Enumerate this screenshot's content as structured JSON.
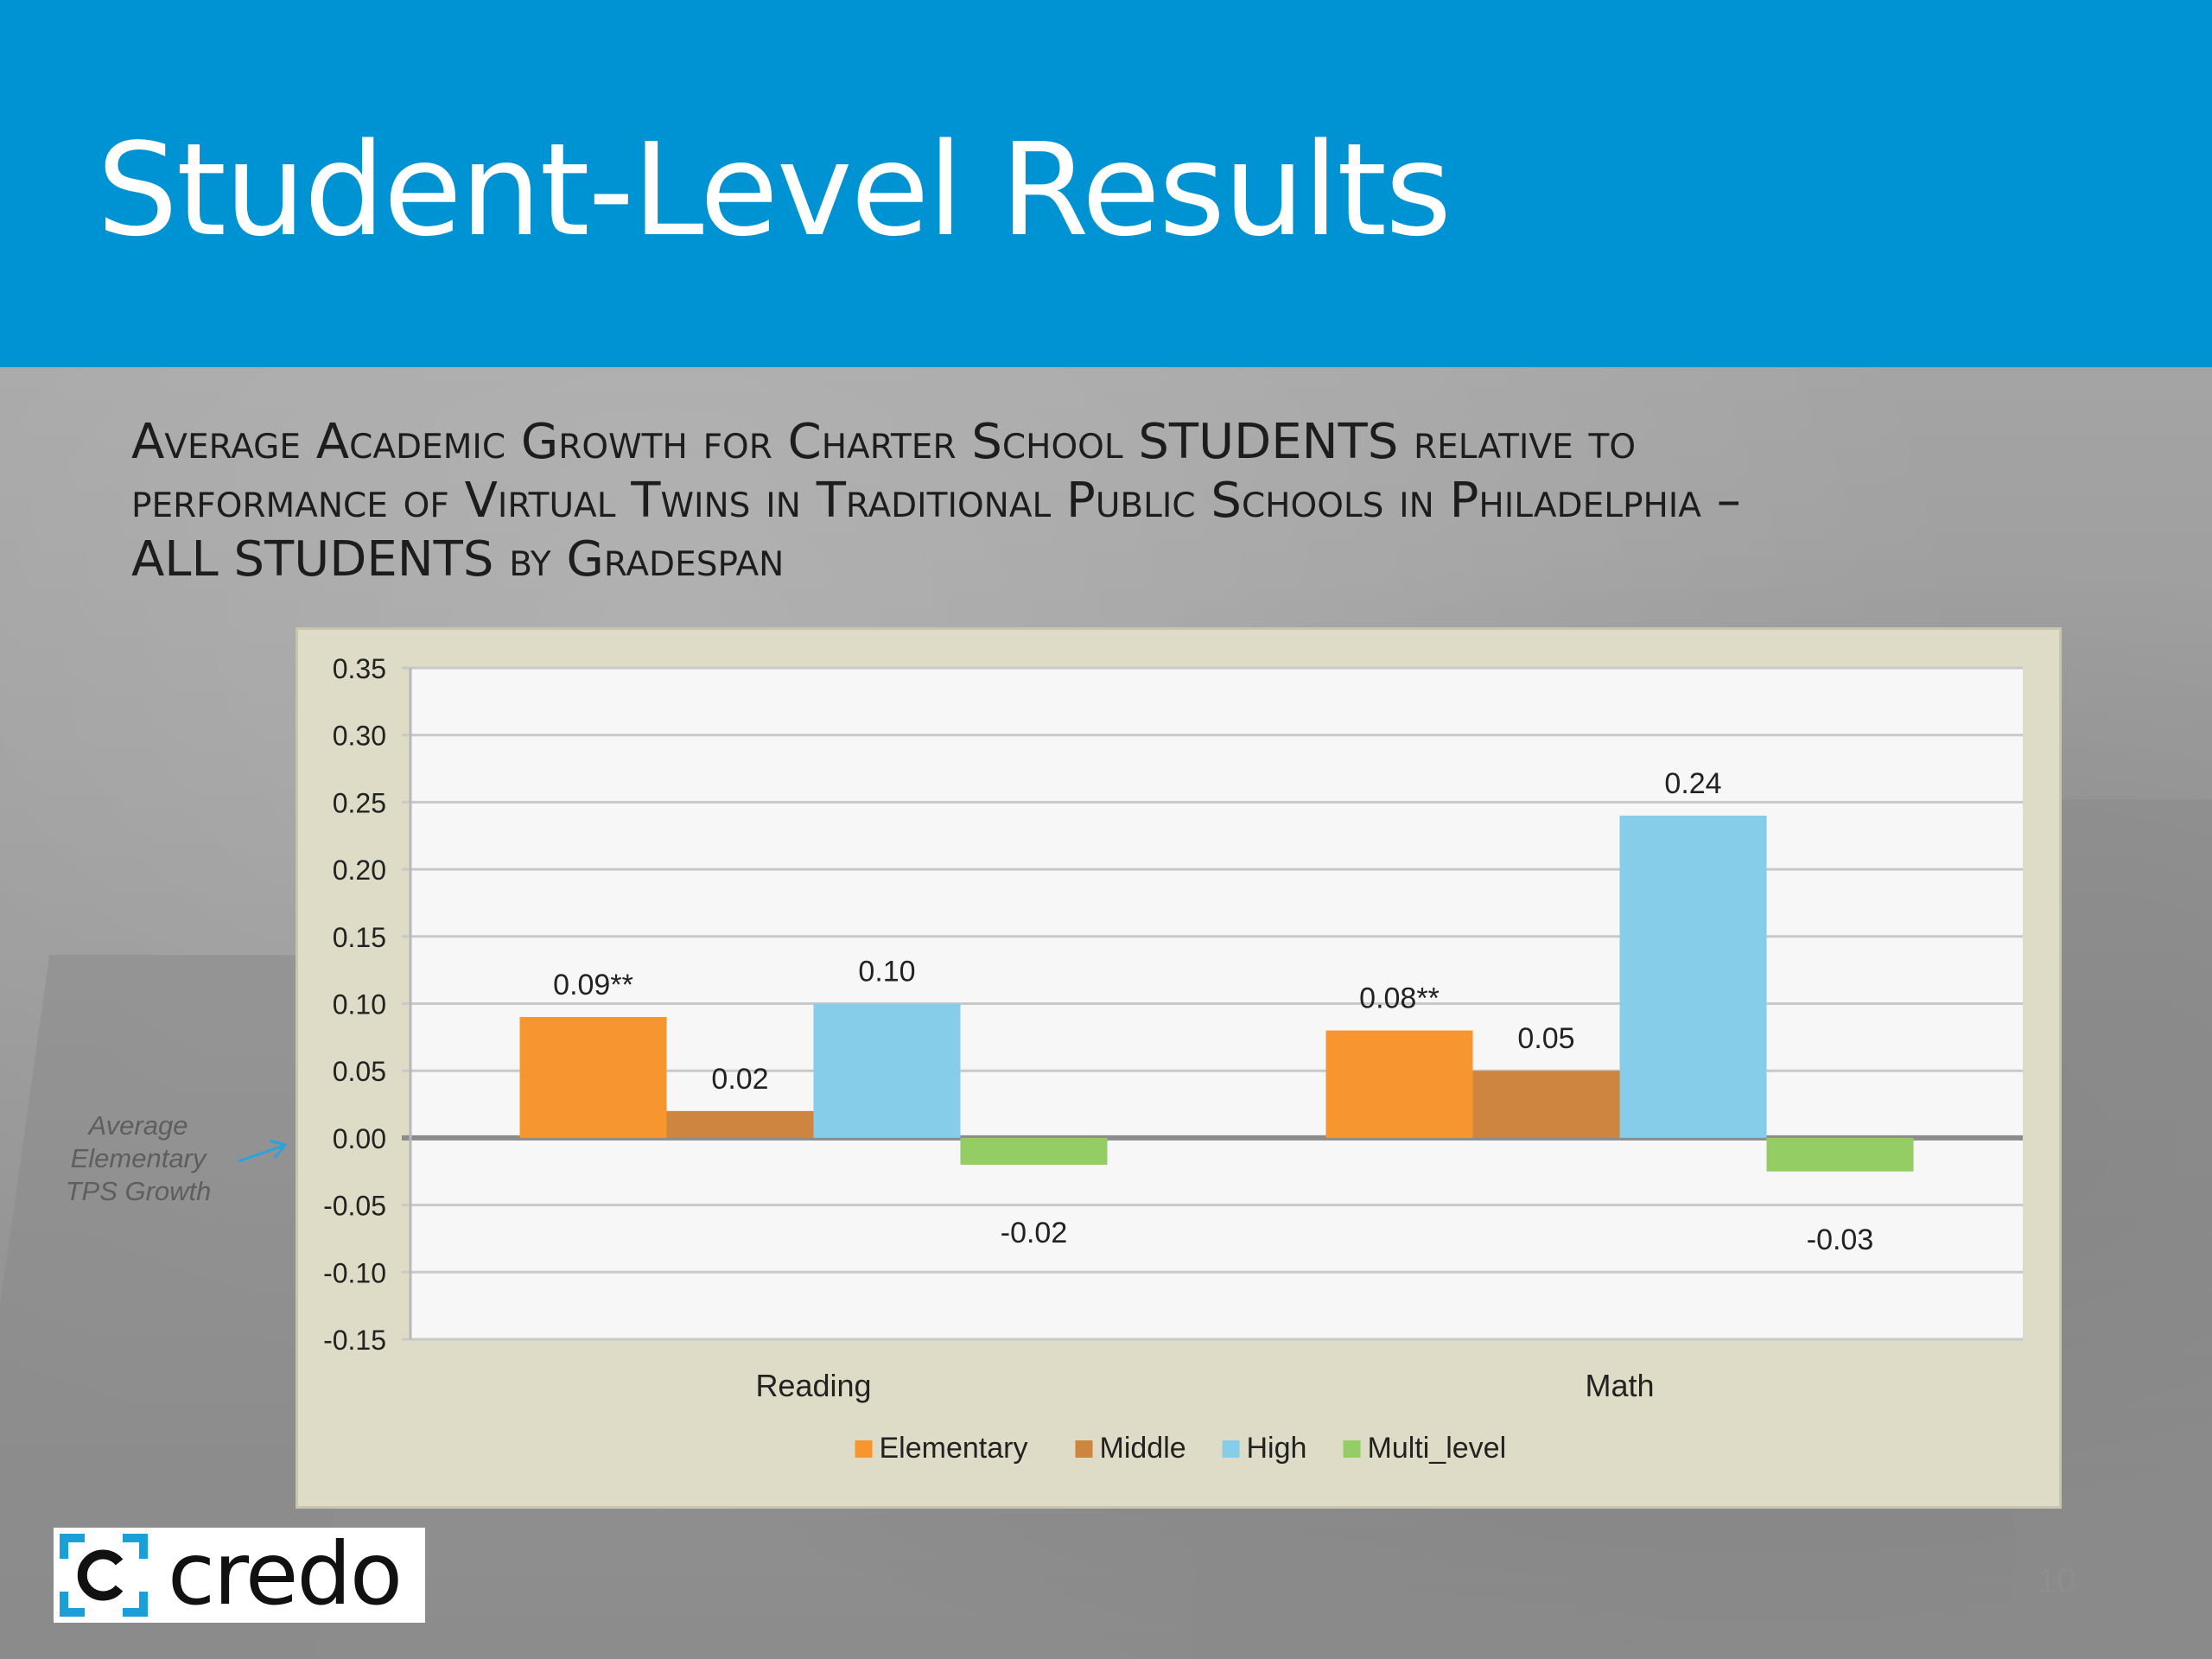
{
  "slide": {
    "title": "Student-Level Results",
    "heading_lines": [
      "Average Academic Growth for Charter School STUDENTS relative to",
      "performance of Virtual Twins in Traditional Public Schools in Philadelphia –",
      "ALL STUDENTS by Gradespan"
    ],
    "side_note_lines": [
      "Average",
      "Elementary",
      "TPS Growth"
    ],
    "logo_text": "credo",
    "page_number": "10"
  },
  "colors": {
    "header": "#0093d3",
    "Elementary": "#f7962f",
    "Middle": "#cd8540",
    "High": "#86cdea",
    "Multi_level": "#93cd63",
    "arrow": "#2aa3dc"
  },
  "chart_data": {
    "type": "bar",
    "title": "",
    "xlabel": "",
    "ylabel": "",
    "categories": [
      "Reading",
      "Math"
    ],
    "ylim": [
      -0.15,
      0.35
    ],
    "yticks": [
      "0.35",
      "0.30",
      "0.25",
      "0.20",
      "0.15",
      "0.10",
      "0.05",
      "0.00",
      "-0.05",
      "-0.10",
      "-0.15"
    ],
    "grid": true,
    "legend": "bottom",
    "series": [
      {
        "name": "Elementary",
        "values": [
          0.09,
          0.08
        ],
        "labels": [
          "0.09**",
          "0.08**"
        ]
      },
      {
        "name": "Middle",
        "values": [
          0.02,
          0.05
        ],
        "labels": [
          "0.02",
          "0.05"
        ]
      },
      {
        "name": "High",
        "values": [
          0.1,
          0.24
        ],
        "labels": [
          "0.10",
          "0.24"
        ]
      },
      {
        "name": "Multi_level",
        "values": [
          -0.02,
          -0.025
        ],
        "labels": [
          "-0.02",
          "-0.03"
        ]
      }
    ]
  }
}
